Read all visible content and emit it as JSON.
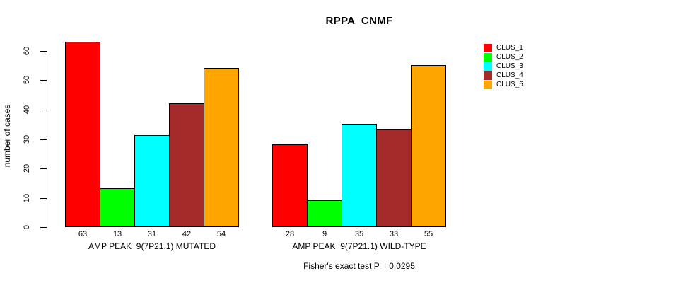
{
  "chart_data": {
    "type": "bar",
    "title": "RPPA_CNMF",
    "ylabel": "number of cases",
    "xlabel": "",
    "ylim": [
      0,
      60
    ],
    "yticks": [
      0,
      10,
      20,
      30,
      40,
      50,
      60
    ],
    "grid": false,
    "legend_position": "right",
    "bar_value_labels_shown": true,
    "categories": [
      "AMP PEAK  9(7P21.1) MUTATED",
      "AMP PEAK  9(7P21.1) WILD-TYPE"
    ],
    "series": [
      {
        "name": "CLUS_1",
        "color": "#ff0000",
        "values": [
          63,
          28
        ]
      },
      {
        "name": "CLUS_2",
        "color": "#00ff00",
        "values": [
          13,
          9
        ]
      },
      {
        "name": "CLUS_3",
        "color": "#00ffff",
        "values": [
          31,
          35
        ]
      },
      {
        "name": "CLUS_4",
        "color": "#a52a2a",
        "values": [
          42,
          33
        ]
      },
      {
        "name": "CLUS_5",
        "color": "#ffa500",
        "values": [
          54,
          55
        ]
      }
    ],
    "annotation": "Fisher's exact test P = 0.0295"
  }
}
